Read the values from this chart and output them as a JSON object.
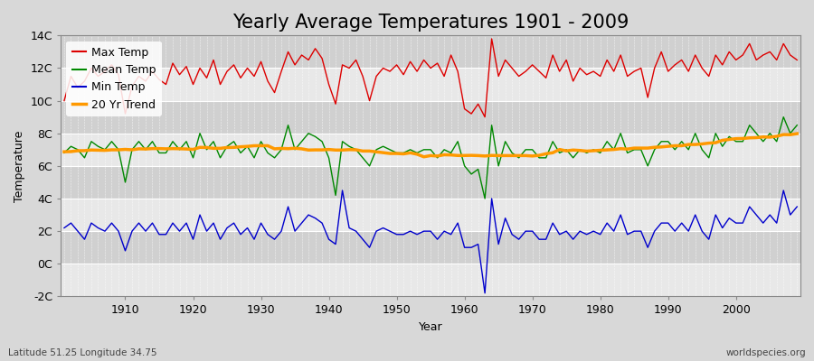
{
  "title": "Yearly Average Temperatures 1901 - 2009",
  "ylabel": "Temperature",
  "xlabel": "Year",
  "bottom_left": "Latitude 51.25 Longitude 34.75",
  "bottom_right": "worldspecies.org",
  "years": [
    1901,
    1902,
    1903,
    1904,
    1905,
    1906,
    1907,
    1908,
    1909,
    1910,
    1911,
    1912,
    1913,
    1914,
    1915,
    1916,
    1917,
    1918,
    1919,
    1920,
    1921,
    1922,
    1923,
    1924,
    1925,
    1926,
    1927,
    1928,
    1929,
    1930,
    1931,
    1932,
    1933,
    1934,
    1935,
    1936,
    1937,
    1938,
    1939,
    1940,
    1941,
    1942,
    1943,
    1944,
    1945,
    1946,
    1947,
    1948,
    1949,
    1950,
    1951,
    1952,
    1953,
    1954,
    1955,
    1956,
    1957,
    1958,
    1959,
    1960,
    1961,
    1962,
    1963,
    1964,
    1965,
    1966,
    1967,
    1968,
    1969,
    1970,
    1971,
    1972,
    1973,
    1974,
    1975,
    1976,
    1977,
    1978,
    1979,
    1980,
    1981,
    1982,
    1983,
    1984,
    1985,
    1986,
    1987,
    1988,
    1989,
    1990,
    1991,
    1992,
    1993,
    1994,
    1995,
    1996,
    1997,
    1998,
    1999,
    2000,
    2001,
    2002,
    2003,
    2004,
    2005,
    2006,
    2007,
    2008,
    2009
  ],
  "max_temp": [
    10.0,
    11.5,
    10.8,
    11.2,
    12.0,
    11.5,
    11.8,
    12.2,
    11.6,
    9.2,
    10.9,
    11.5,
    11.2,
    11.8,
    11.3,
    11.0,
    12.3,
    11.6,
    12.1,
    11.0,
    12.0,
    11.4,
    12.5,
    11.0,
    11.8,
    12.2,
    11.4,
    12.0,
    11.5,
    12.4,
    11.2,
    10.5,
    11.8,
    13.0,
    12.2,
    12.8,
    12.5,
    13.2,
    12.6,
    11.0,
    9.8,
    12.2,
    12.0,
    12.5,
    11.5,
    10.0,
    11.5,
    12.0,
    11.8,
    12.2,
    11.6,
    12.4,
    11.8,
    12.5,
    12.0,
    12.3,
    11.5,
    12.8,
    11.8,
    9.5,
    9.2,
    9.8,
    9.0,
    13.8,
    11.5,
    12.5,
    12.0,
    11.5,
    11.8,
    12.2,
    11.8,
    11.4,
    12.8,
    11.8,
    12.5,
    11.2,
    12.0,
    11.6,
    11.8,
    11.5,
    12.5,
    11.8,
    12.8,
    11.5,
    11.8,
    12.0,
    10.2,
    12.0,
    13.0,
    11.8,
    12.2,
    12.5,
    11.8,
    12.8,
    12.0,
    11.5,
    12.8,
    12.2,
    13.0,
    12.5,
    12.8,
    13.5,
    12.5,
    12.8,
    13.0,
    12.5,
    13.5,
    12.8,
    12.5
  ],
  "mean_temp": [
    6.8,
    7.2,
    7.0,
    6.5,
    7.5,
    7.2,
    7.0,
    7.5,
    7.0,
    5.0,
    7.0,
    7.5,
    7.0,
    7.5,
    6.8,
    6.8,
    7.5,
    7.0,
    7.5,
    6.5,
    8.0,
    7.0,
    7.5,
    6.5,
    7.2,
    7.5,
    6.8,
    7.2,
    6.5,
    7.5,
    6.8,
    6.5,
    7.0,
    8.5,
    7.0,
    7.5,
    8.0,
    7.8,
    7.5,
    6.5,
    4.2,
    7.5,
    7.2,
    7.0,
    6.5,
    6.0,
    7.0,
    7.2,
    7.0,
    6.8,
    6.8,
    7.0,
    6.8,
    7.0,
    7.0,
    6.5,
    7.0,
    6.8,
    7.5,
    6.0,
    5.5,
    5.8,
    4.0,
    8.5,
    6.0,
    7.5,
    6.8,
    6.5,
    7.0,
    7.0,
    6.5,
    6.5,
    7.5,
    6.8,
    7.0,
    6.5,
    7.0,
    6.8,
    7.0,
    6.8,
    7.5,
    7.0,
    8.0,
    6.8,
    7.0,
    7.0,
    6.0,
    7.0,
    7.5,
    7.5,
    7.0,
    7.5,
    7.0,
    8.0,
    7.0,
    6.5,
    8.0,
    7.2,
    7.8,
    7.5,
    7.5,
    8.5,
    8.0,
    7.5,
    8.0,
    7.5,
    9.0,
    8.0,
    8.5
  ],
  "min_temp": [
    2.2,
    2.5,
    2.0,
    1.5,
    2.5,
    2.2,
    2.0,
    2.5,
    2.0,
    0.8,
    2.0,
    2.5,
    2.0,
    2.5,
    1.8,
    1.8,
    2.5,
    2.0,
    2.5,
    1.5,
    3.0,
    2.0,
    2.5,
    1.5,
    2.2,
    2.5,
    1.8,
    2.2,
    1.5,
    2.5,
    1.8,
    1.5,
    2.0,
    3.5,
    2.0,
    2.5,
    3.0,
    2.8,
    2.5,
    1.5,
    1.2,
    4.5,
    2.2,
    2.0,
    1.5,
    1.0,
    2.0,
    2.2,
    2.0,
    1.8,
    1.8,
    2.0,
    1.8,
    2.0,
    2.0,
    1.5,
    2.0,
    1.8,
    2.5,
    1.0,
    1.0,
    1.2,
    -1.8,
    4.0,
    1.2,
    2.8,
    1.8,
    1.5,
    2.0,
    2.0,
    1.5,
    1.5,
    2.5,
    1.8,
    2.0,
    1.5,
    2.0,
    1.8,
    2.0,
    1.8,
    2.5,
    2.0,
    3.0,
    1.8,
    2.0,
    2.0,
    1.0,
    2.0,
    2.5,
    2.5,
    2.0,
    2.5,
    2.0,
    3.0,
    2.0,
    1.5,
    3.0,
    2.2,
    2.8,
    2.5,
    2.5,
    3.5,
    3.0,
    2.5,
    3.0,
    2.5,
    4.5,
    3.0,
    3.5
  ],
  "bg_color": "#d8d8d8",
  "plot_bg_color": "#d8d8d8",
  "band_color_light": "#e8e8e8",
  "band_color_dark": "#d0d0d0",
  "max_color": "#dd0000",
  "mean_color": "#008800",
  "min_color": "#0000cc",
  "trend_color": "#ff9900",
  "ylim": [
    -2,
    14
  ],
  "yticks": [
    -2,
    0,
    2,
    4,
    6,
    8,
    10,
    12,
    14
  ],
  "ytick_labels": [
    "-2C",
    "0C",
    "2C",
    "4C",
    "6C",
    "8C",
    "10C",
    "12C",
    "14C"
  ],
  "title_fontsize": 15,
  "axis_fontsize": 9,
  "legend_fontsize": 9
}
